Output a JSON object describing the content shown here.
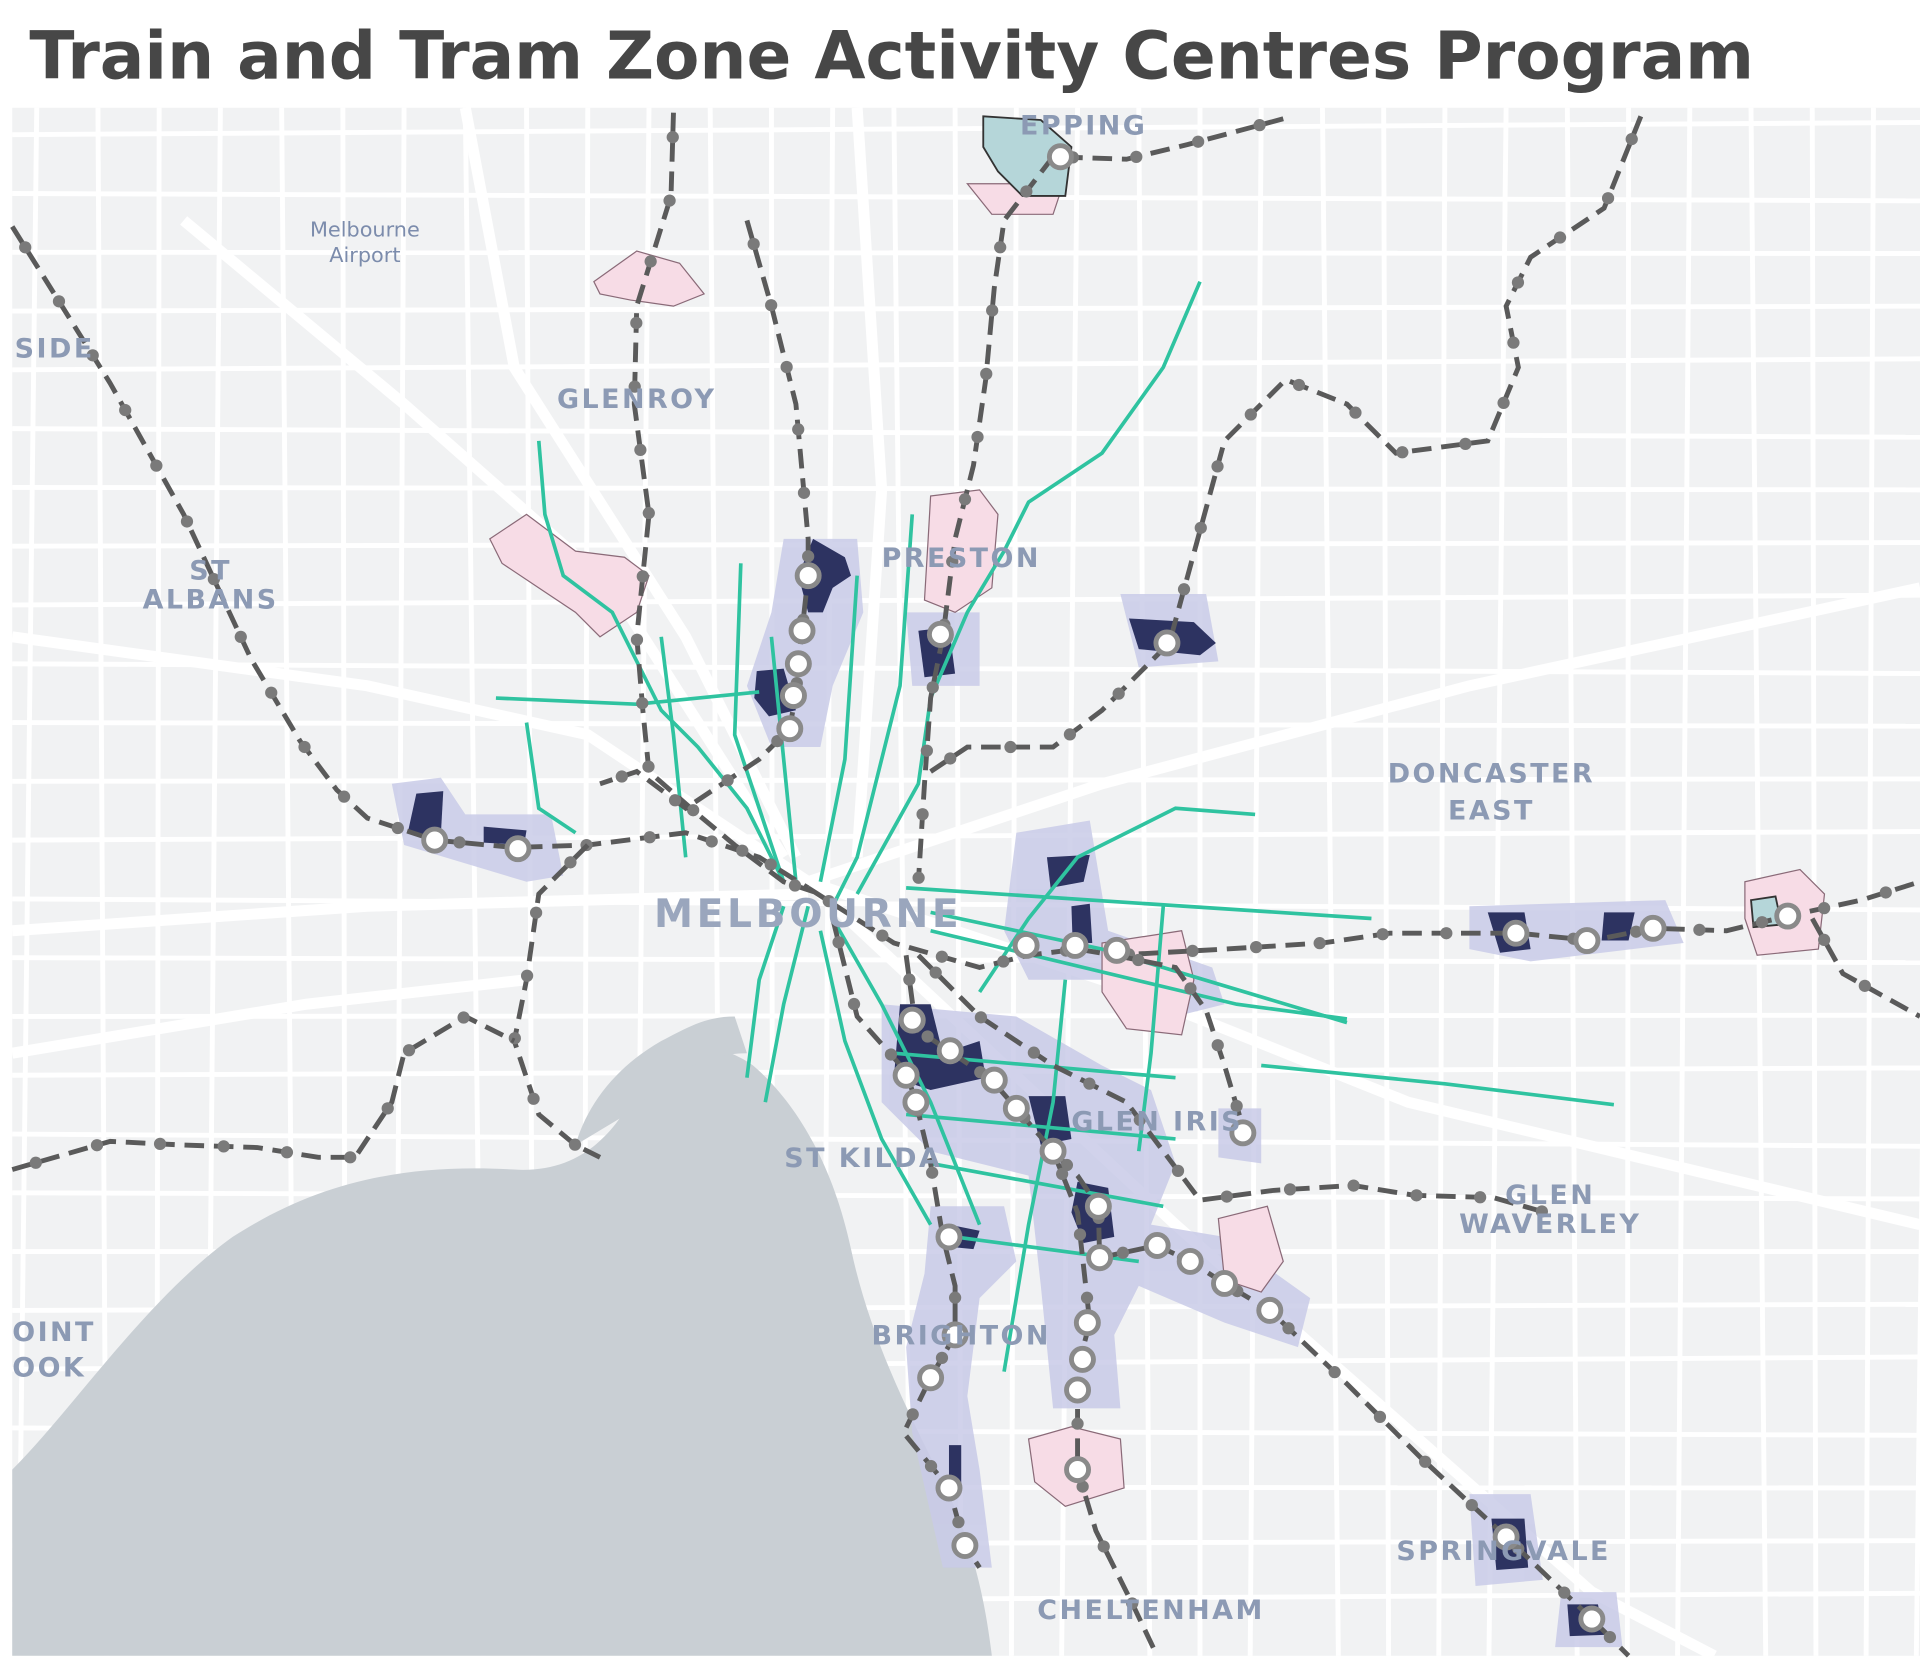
{
  "title": "Train and Tram Zone Activity Centres Program",
  "places": [
    {
      "lines": [
        "Melbourne",
        "Airport"
      ]
    },
    {
      "lines": [
        "SIDE"
      ]
    },
    {
      "lines": [
        "GLENROY"
      ]
    },
    {
      "lines": [
        "ST",
        "ALBANS"
      ]
    },
    {
      "lines": [
        "PRESTON"
      ]
    },
    {
      "lines": [
        "EPPING"
      ]
    },
    {
      "lines": [
        "DONCASTER",
        "EAST"
      ]
    },
    {
      "lines": [
        "MELBOURNE"
      ]
    },
    {
      "lines": [
        "GLEN IRIS"
      ]
    },
    {
      "lines": [
        "ST KILDA"
      ]
    },
    {
      "lines": [
        "GLEN",
        "WAVERLEY"
      ]
    },
    {
      "lines": [
        "BRIGHTON"
      ]
    },
    {
      "lines": [
        "SPRINGVALE"
      ]
    },
    {
      "lines": [
        "CHELTENHAM"
      ]
    },
    {
      "lines": [
        "OINT",
        "OOK"
      ]
    }
  ]
}
